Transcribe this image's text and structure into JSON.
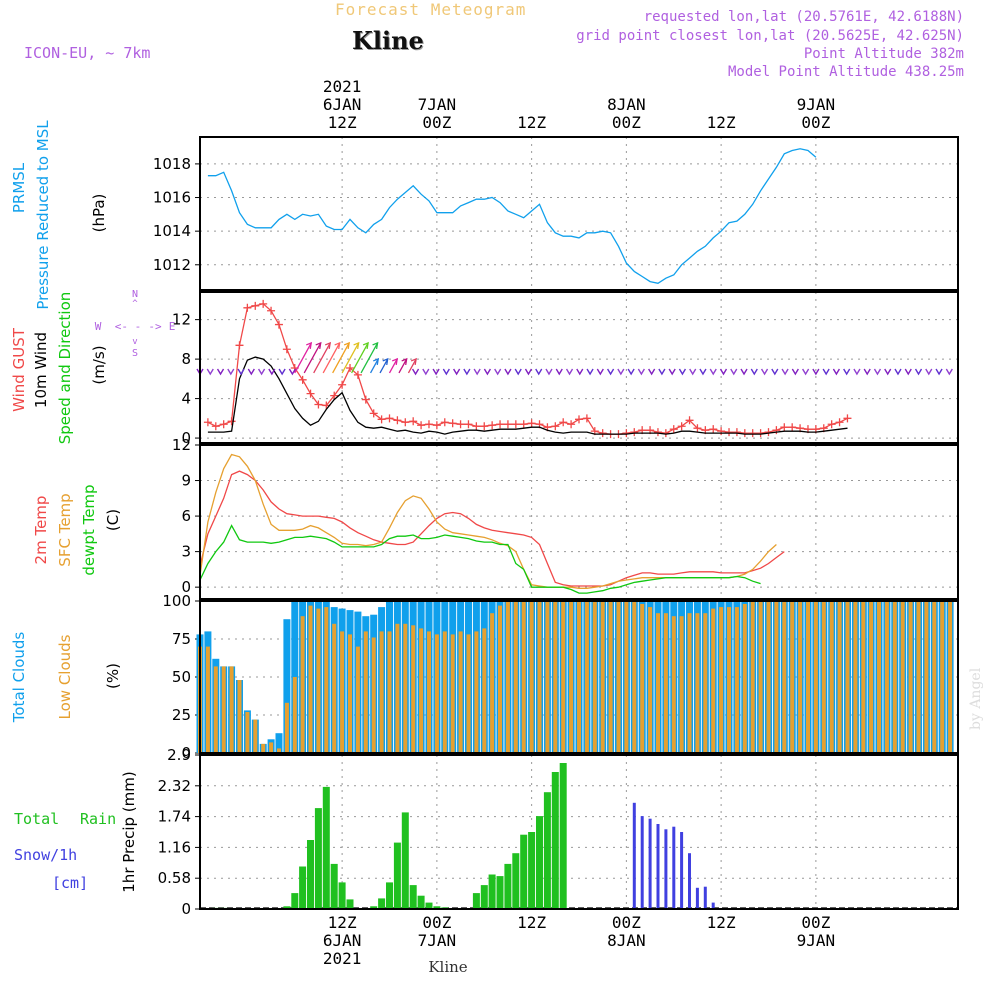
{
  "header": {
    "forecast_title": "Forecast Meteogram",
    "location": "Kline",
    "model": "ICON-EU, ~ 7km",
    "requested": "requested lon,lat (20.5761E, 42.6188N)",
    "grid_point": "grid point closest lon,lat (20.5625E, 42.625N)",
    "point_altitude": "Point Altitude 382m",
    "model_altitude": "Model Point Altitude 438.25m",
    "credit": "by Angel",
    "footer": "Kline"
  },
  "time_axis": {
    "hours_range": [
      -6,
      90
    ],
    "ticks": [
      {
        "hour": 12,
        "top": [
          "2021",
          "6JAN",
          "12Z"
        ],
        "bottom": [
          "12Z",
          "6JAN",
          "2021"
        ]
      },
      {
        "hour": 24,
        "top": [
          "7JAN",
          "00Z"
        ],
        "bottom": [
          "00Z",
          "7JAN"
        ]
      },
      {
        "hour": 36,
        "top": [
          "12Z"
        ],
        "bottom": [
          "12Z"
        ]
      },
      {
        "hour": 48,
        "top": [
          "8JAN",
          "00Z"
        ],
        "bottom": [
          "00Z",
          "8JAN"
        ]
      },
      {
        "hour": 60,
        "top": [
          "12Z"
        ],
        "bottom": [
          "12Z"
        ]
      },
      {
        "hour": 72,
        "top": [
          "9JAN",
          "00Z"
        ],
        "bottom": [
          "00Z",
          "9JAN"
        ]
      }
    ]
  },
  "colors": {
    "pressure": "#10a0ec",
    "gust": "#f04848",
    "wind": "#000000",
    "temp2m": "#f04848",
    "sfc": "#e6a030",
    "dewpt": "#10c810",
    "total_clouds": "#10a0ec",
    "low_clouds": "#e6a030",
    "rain": "#20c020",
    "snow": "#4040e0",
    "label_purple": "#b060e0"
  },
  "chart_data": [
    {
      "type": "line",
      "name": "pressure",
      "ylabels": [
        "PRMSL",
        "Pressure Reduced to MSL"
      ],
      "unit": "(hPa)",
      "ylim": [
        1010.5,
        1019.6
      ],
      "yticks": [
        1012,
        1014,
        1016,
        1018
      ],
      "x_start": -5,
      "x_step": 1,
      "series": [
        {
          "name": "PRMSL",
          "values": [
            1017.3,
            1017.3,
            1017.5,
            1016.4,
            1015.1,
            1014.4,
            1014.2,
            1014.2,
            1014.2,
            1014.7,
            1015.0,
            1014.7,
            1015.0,
            1014.9,
            1015.0,
            1014.3,
            1014.1,
            1014.1,
            1014.7,
            1014.2,
            1013.9,
            1014.4,
            1014.7,
            1015.4,
            1015.9,
            1016.3,
            1016.7,
            1016.2,
            1015.8,
            1015.1,
            1015.1,
            1015.1,
            1015.5,
            1015.7,
            1015.9,
            1015.9,
            1016.0,
            1015.7,
            1015.2,
            1015.0,
            1014.8,
            1015.2,
            1015.6,
            1014.5,
            1013.9,
            1013.7,
            1013.7,
            1013.6,
            1013.9,
            1013.9,
            1014.0,
            1013.9,
            1013.1,
            1012.1,
            1011.6,
            1011.3,
            1011.0,
            1010.9,
            1011.2,
            1011.4,
            1012.0,
            1012.4,
            1012.8,
            1013.1,
            1013.6,
            1014.0,
            1014.5,
            1014.6,
            1015.0,
            1015.6,
            1016.4,
            1017.1,
            1017.8,
            1018.6,
            1018.8,
            1018.9,
            1018.8,
            1018.4
          ]
        }
      ]
    },
    {
      "type": "line",
      "name": "wind",
      "ylabels": [
        "Wind GUST",
        "10m Wind",
        "Speed and Direction"
      ],
      "unit": "(m/s)",
      "ylim": [
        -0.5,
        14.8
      ],
      "yticks": [
        0,
        4,
        8,
        12
      ],
      "direction_baseline": 6.8,
      "compass": {
        "n": "N",
        "s": "S",
        "e": "E",
        "w": "W",
        "glyph_v1": "^",
        "glyph_v2": "v",
        "glyph_w": "<- -",
        "glyph_e": "->"
      },
      "x_start": -5,
      "x_step": 1,
      "series": [
        {
          "name": "Wind GUST",
          "values": [
            1.6,
            1.2,
            1.4,
            1.7,
            9.4,
            13.2,
            13.4,
            13.6,
            12.9,
            11.5,
            9.0,
            7.1,
            5.9,
            4.5,
            3.4,
            3.3,
            4.3,
            5.4,
            7.1,
            6.4,
            3.9,
            2.5,
            1.9,
            2.0,
            1.8,
            1.6,
            1.7,
            1.3,
            1.4,
            1.3,
            1.6,
            1.5,
            1.4,
            1.4,
            1.2,
            1.2,
            1.3,
            1.4,
            1.4,
            1.4,
            1.4,
            1.5,
            1.4,
            1.1,
            1.2,
            1.6,
            1.4,
            1.9,
            2.0,
            0.7,
            0.5,
            0.4,
            0.4,
            0.5,
            0.6,
            0.8,
            0.8,
            0.6,
            0.5,
            0.9,
            1.2,
            1.8,
            1.0,
            0.8,
            0.9,
            0.7,
            0.6,
            0.6,
            0.5,
            0.5,
            0.5,
            0.6,
            0.8,
            1.1,
            1.1,
            1.0,
            0.9,
            0.9,
            1.0,
            1.4,
            1.6,
            2.0
          ]
        },
        {
          "name": "10m Wind",
          "values": [
            0.6,
            0.6,
            0.6,
            0.7,
            6.0,
            7.9,
            8.2,
            8.0,
            7.3,
            6.0,
            4.5,
            3.0,
            2.0,
            1.3,
            1.7,
            2.9,
            3.9,
            4.6,
            2.8,
            1.6,
            1.1,
            1.0,
            1.1,
            0.9,
            0.7,
            0.8,
            0.6,
            0.5,
            0.7,
            0.6,
            0.4,
            0.6,
            0.7,
            0.8,
            0.8,
            0.7,
            0.8,
            0.9,
            0.9,
            0.9,
            1.0,
            1.1,
            1.1,
            0.8,
            0.6,
            0.5,
            0.6,
            0.6,
            0.6,
            0.4,
            0.4,
            0.4,
            0.4,
            0.4,
            0.5,
            0.5,
            0.5,
            0.5,
            0.4,
            0.5,
            0.7,
            0.7,
            0.6,
            0.5,
            0.5,
            0.5,
            0.5,
            0.5,
            0.4,
            0.4,
            0.4,
            0.5,
            0.6,
            0.7,
            0.7,
            0.7,
            0.6,
            0.6,
            0.7,
            0.8,
            0.9,
            1.0
          ]
        }
      ]
    },
    {
      "type": "line",
      "name": "temperature",
      "ylabels": [
        "2m Temp",
        "SFC Temp",
        "dewpt Temp"
      ],
      "unit": "(C)",
      "ylim": [
        -1,
        12
      ],
      "yticks": [
        0,
        3,
        6,
        9,
        12
      ],
      "x_start": -6,
      "x_step": 1,
      "series": [
        {
          "name": "2m Temp",
          "values": [
            1.8,
            4.5,
            6.0,
            7.5,
            9.5,
            9.8,
            9.5,
            9.0,
            8.2,
            7.2,
            6.6,
            6.2,
            6.1,
            6.0,
            6.0,
            6.0,
            5.9,
            5.8,
            5.5,
            5.0,
            4.6,
            4.3,
            4.0,
            3.8,
            3.7,
            3.6,
            3.6,
            3.8,
            4.5,
            5.2,
            5.8,
            6.2,
            6.3,
            6.2,
            5.8,
            5.3,
            5.0,
            4.8,
            4.7,
            4.6,
            4.5,
            4.4,
            4.2,
            3.6,
            2.0,
            0.4,
            0.2,
            0.1,
            0.1,
            0.1,
            0.1,
            0.1,
            0.2,
            0.5,
            0.8,
            1.0,
            1.2,
            1.2,
            1.1,
            1.1,
            1.1,
            1.2,
            1.3,
            1.3,
            1.3,
            1.3,
            1.2,
            1.2,
            1.2,
            1.2,
            1.4,
            1.6,
            2.0,
            2.5,
            3.0
          ]
        },
        {
          "name": "SFC Temp",
          "values": [
            1.0,
            5.5,
            8.0,
            10.0,
            11.2,
            11.0,
            10.2,
            9.0,
            7.0,
            5.3,
            4.8,
            4.8,
            4.8,
            4.9,
            5.2,
            5.0,
            4.6,
            4.2,
            3.7,
            3.6,
            3.6,
            3.5,
            3.6,
            3.8,
            5.0,
            6.3,
            7.3,
            7.7,
            7.5,
            6.6,
            5.5,
            4.9,
            4.6,
            4.5,
            4.4,
            4.3,
            4.2,
            4.0,
            3.7,
            3.5,
            3.0,
            1.5,
            0.2,
            0.1,
            0.0,
            0.0,
            0.0,
            0.0,
            -0.1,
            -0.1,
            0.0,
            0.1,
            0.3,
            0.5,
            0.6,
            0.7,
            0.8,
            0.8,
            0.8,
            0.8,
            0.8,
            0.8,
            0.8,
            0.8,
            0.8,
            0.8,
            0.8,
            0.8,
            0.9,
            1.1,
            1.5,
            2.2,
            3.0,
            3.6
          ]
        },
        {
          "name": "dewpt Temp",
          "values": [
            0.6,
            2.0,
            3.0,
            3.8,
            5.2,
            4.0,
            3.8,
            3.8,
            3.8,
            3.7,
            3.8,
            4.0,
            4.2,
            4.2,
            4.3,
            4.2,
            4.1,
            3.8,
            3.4,
            3.4,
            3.4,
            3.4,
            3.4,
            3.6,
            4.1,
            4.3,
            4.3,
            4.4,
            4.1,
            4.1,
            4.2,
            4.4,
            4.3,
            4.2,
            4.1,
            3.9,
            3.8,
            3.8,
            3.6,
            3.6,
            2.0,
            1.5,
            0.0,
            0.0,
            0.0,
            0.0,
            0.0,
            -0.2,
            -0.5,
            -0.5,
            -0.4,
            -0.3,
            -0.1,
            0.0,
            0.2,
            0.4,
            0.5,
            0.6,
            0.7,
            0.8,
            0.8,
            0.8,
            0.8,
            0.8,
            0.8,
            0.8,
            0.8,
            0.8,
            0.9,
            0.8,
            0.5,
            0.3
          ]
        }
      ]
    },
    {
      "type": "bar",
      "name": "clouds",
      "ylabels": [
        "Total Clouds",
        "Low Clouds"
      ],
      "unit": "(%)",
      "ylim": [
        0,
        100
      ],
      "yticks": [
        0,
        25,
        50,
        75,
        100
      ],
      "x_start": -6,
      "x_step": 1,
      "series": [
        {
          "name": "Total Clouds",
          "values": [
            78,
            80,
            62,
            57,
            57,
            48,
            28,
            22,
            6,
            9,
            13,
            88,
            100,
            100,
            100,
            100,
            100,
            96,
            95,
            94,
            93,
            90,
            91,
            96,
            100,
            100,
            100,
            100,
            100,
            100,
            100,
            100,
            100,
            100,
            100,
            100,
            100,
            100,
            100,
            100,
            100,
            100,
            100,
            100,
            100,
            100,
            100,
            100,
            100,
            100,
            100,
            100,
            100,
            100,
            100,
            100,
            100,
            100,
            100,
            100,
            100,
            100,
            100,
            100,
            100,
            100,
            100,
            100,
            100,
            100,
            100,
            100,
            100,
            100,
            100,
            100,
            100,
            100,
            100,
            100,
            100,
            100,
            100,
            100,
            100,
            100,
            100,
            100,
            100,
            100,
            100,
            100,
            100,
            100,
            100,
            100
          ]
        },
        {
          "name": "Low Clouds",
          "values": [
            70,
            70,
            57,
            57,
            57,
            48,
            27,
            22,
            6,
            7,
            3,
            33,
            50,
            90,
            97,
            95,
            96,
            85,
            80,
            78,
            70,
            80,
            76,
            80,
            80,
            85,
            85,
            84,
            82,
            80,
            78,
            80,
            78,
            80,
            78,
            80,
            82,
            92,
            97,
            100,
            100,
            100,
            100,
            100,
            100,
            100,
            100,
            100,
            100,
            100,
            100,
            100,
            100,
            100,
            100,
            100,
            98,
            96,
            92,
            92,
            90,
            90,
            92,
            92,
            92,
            95,
            96,
            96,
            96,
            98,
            100,
            100,
            100,
            100,
            100,
            100,
            100,
            100,
            100,
            100,
            100,
            100,
            100,
            100,
            100,
            100,
            100,
            100,
            100,
            100,
            100,
            100,
            100,
            100,
            100,
            100
          ]
        }
      ]
    },
    {
      "type": "bar",
      "name": "precip",
      "ylabels": [
        "Total Rain",
        "Snow/1h",
        "[cm]"
      ],
      "unit": "1hr Precip (mm)",
      "ylim": [
        0,
        2.9
      ],
      "yticks": [
        0,
        0.58,
        1.16,
        1.74,
        2.32,
        2.9
      ],
      "ytick_labels": [
        "0",
        "0.58",
        "1.16",
        "1.74",
        "2.32",
        "2.9"
      ],
      "x_start": -5,
      "x_step": 1,
      "series": [
        {
          "name": "Total Rain",
          "values": [
            0,
            0.02,
            0.02,
            0,
            0,
            0,
            0,
            0,
            0,
            0,
            0.05,
            0.3,
            0.8,
            1.3,
            1.9,
            2.3,
            0.85,
            0.5,
            0.18,
            0,
            0,
            0.05,
            0.2,
            0.5,
            1.25,
            1.82,
            0.45,
            0.25,
            0.12,
            0.05,
            0.03,
            0,
            0,
            0,
            0.3,
            0.45,
            0.65,
            0.62,
            0.85,
            1.05,
            1.4,
            1.45,
            1.75,
            2.2,
            2.58,
            2.75
          ]
        },
        {
          "name": "Snow/1h",
          "values": [
            2.0,
            1.75,
            1.7,
            1.6,
            1.5,
            1.55,
            1.45,
            1.05,
            0.4,
            0.42,
            0.12
          ]
        }
      ],
      "snow_x_start": 49
    }
  ]
}
